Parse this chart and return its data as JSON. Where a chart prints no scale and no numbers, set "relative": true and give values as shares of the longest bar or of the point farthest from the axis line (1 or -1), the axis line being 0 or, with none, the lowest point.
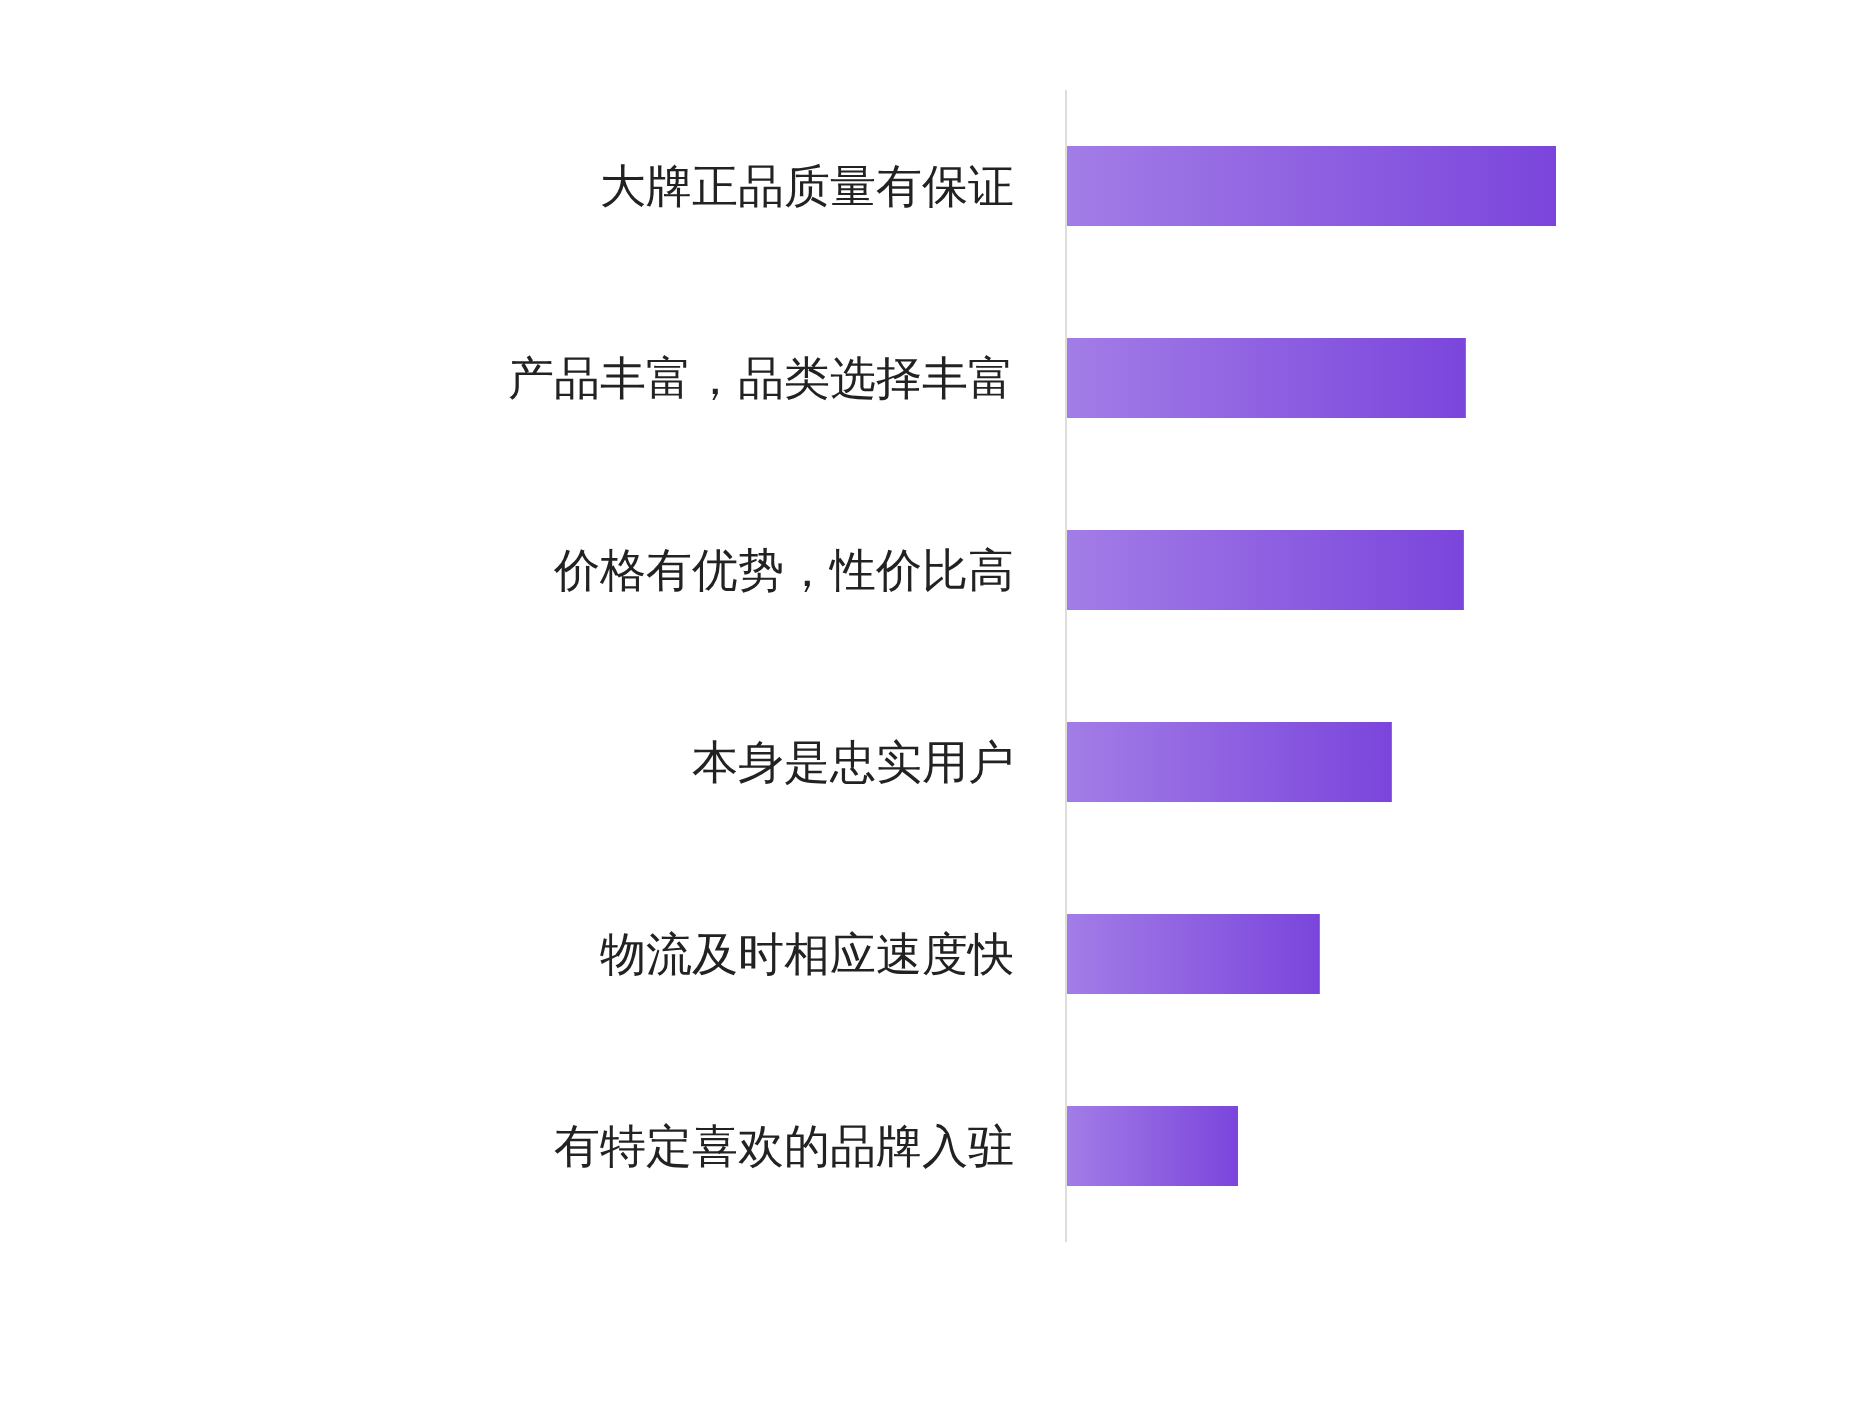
{
  "chart_data": {
    "type": "bar",
    "orientation": "horizontal",
    "relative": true,
    "categories": [
      "大牌正品质量有保证",
      "产品丰富，品类选择丰富",
      "价格有优势，性价比高",
      "本身是忠实用户",
      "物流及时相应速度快",
      "有特定喜欢的品牌入驻"
    ],
    "values": [
      1,
      0.816,
      0.812,
      0.665,
      0.518,
      0.351
    ],
    "color": "#7b45dc",
    "grid": false,
    "legend": false
  }
}
